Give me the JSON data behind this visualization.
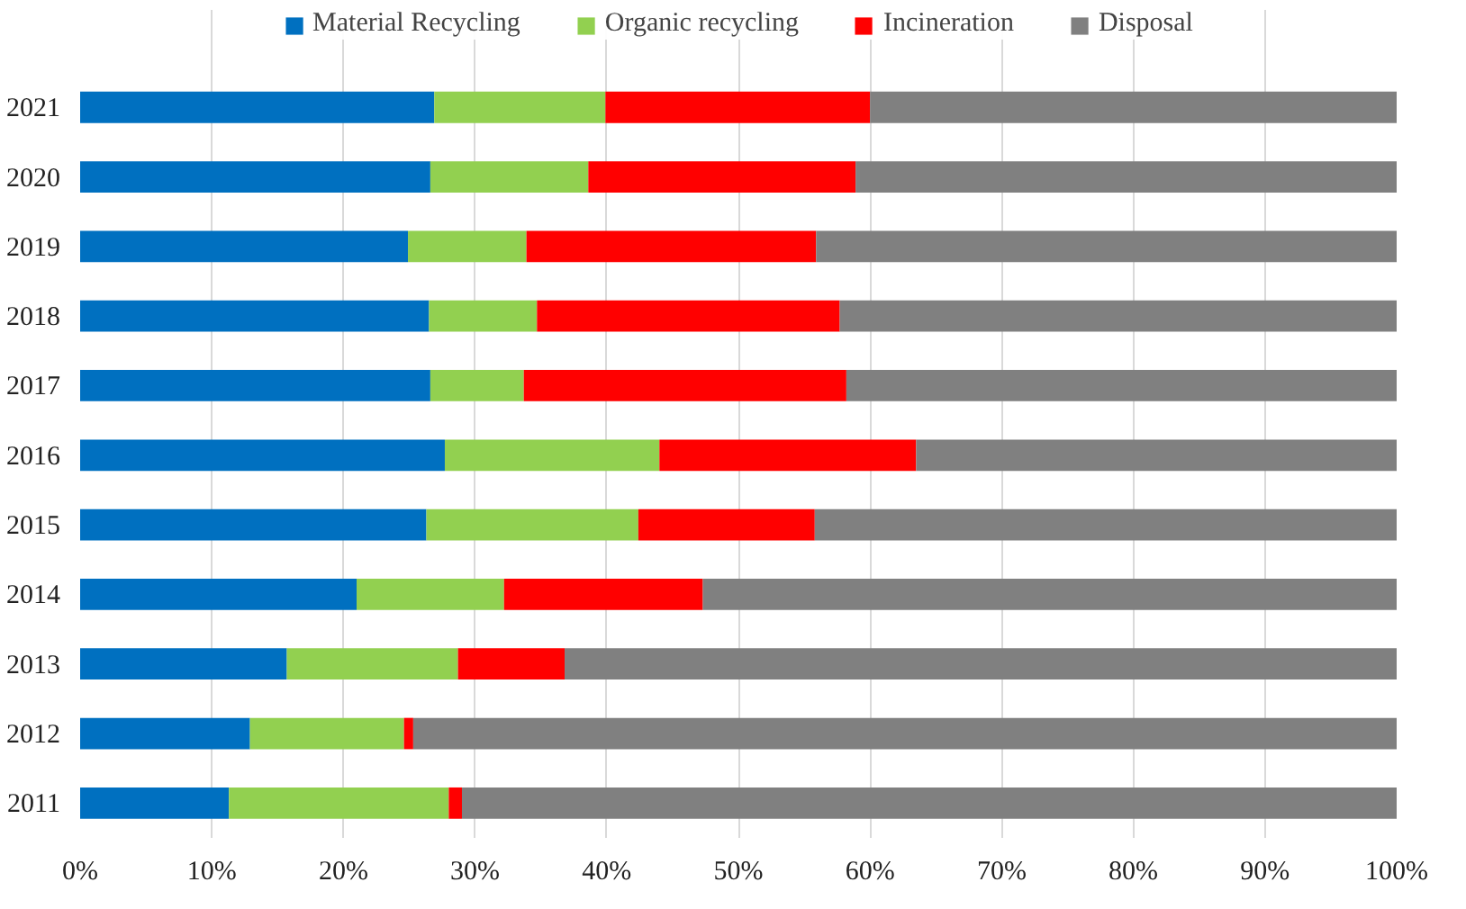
{
  "chart_data": {
    "type": "bar",
    "orientation": "horizontal",
    "stacked": true,
    "categories": [
      "2021",
      "2020",
      "2019",
      "2018",
      "2017",
      "2016",
      "2015",
      "2014",
      "2013",
      "2012",
      "2011"
    ],
    "series": [
      {
        "name": "Material Recycling",
        "color": "#0070c0",
        "values": [
          26.9,
          26.6,
          24.9,
          26.5,
          26.6,
          27.7,
          26.3,
          21.0,
          15.7,
          12.9,
          11.3
        ]
      },
      {
        "name": "Organic recycling",
        "color": "#92d050",
        "values": [
          13.0,
          12.0,
          9.0,
          8.2,
          7.1,
          16.3,
          16.1,
          11.2,
          13.0,
          11.7,
          16.7
        ]
      },
      {
        "name": "Incineration",
        "color": "#ff0000",
        "values": [
          20.1,
          20.3,
          22.0,
          23.0,
          24.5,
          19.5,
          13.4,
          15.1,
          8.1,
          0.7,
          1.0
        ]
      },
      {
        "name": "Disposal",
        "color": "#808080",
        "values": [
          40.0,
          41.1,
          44.1,
          42.3,
          41.8,
          36.5,
          44.2,
          52.7,
          63.2,
          74.7,
          71.0
        ]
      }
    ],
    "xlim": [
      0,
      100
    ],
    "xticks": [
      {
        "value": 0,
        "label": "0%"
      },
      {
        "value": 10,
        "label": "10%"
      },
      {
        "value": 20,
        "label": "20%"
      },
      {
        "value": 30,
        "label": "30%"
      },
      {
        "value": 40,
        "label": "40%"
      },
      {
        "value": 50,
        "label": "50%"
      },
      {
        "value": 60,
        "label": "60%"
      },
      {
        "value": 70,
        "label": "70%"
      },
      {
        "value": 80,
        "label": "80%"
      },
      {
        "value": 90,
        "label": "90%"
      },
      {
        "value": 100,
        "label": "100%"
      }
    ],
    "grid": "x",
    "legend": "top"
  }
}
